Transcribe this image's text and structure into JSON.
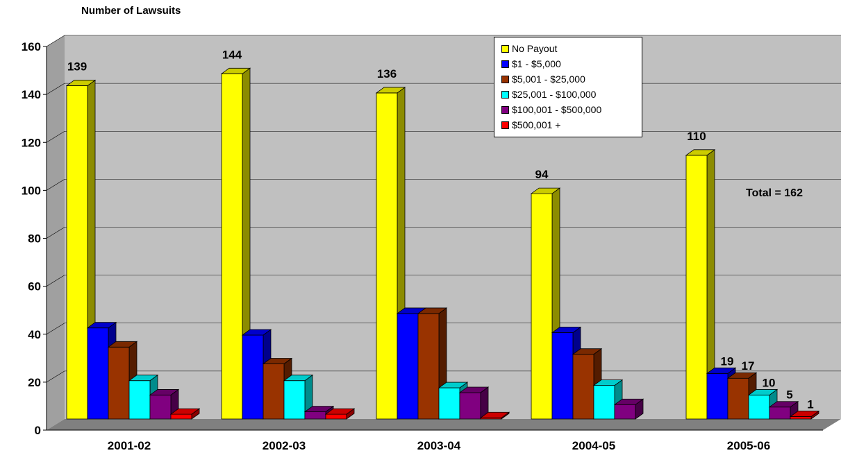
{
  "chart_data": {
    "type": "bar",
    "title": "Number of Lawsuits",
    "categories": [
      "2001-02",
      "2002-03",
      "2003-04",
      "2004-05",
      "2005-06"
    ],
    "ylim": [
      0,
      160
    ],
    "yticks": [
      0,
      20,
      40,
      60,
      80,
      100,
      120,
      140,
      160
    ],
    "grid": true,
    "legend_position": "top-right",
    "series": [
      {
        "name": "No Payout",
        "color": "#ffff00",
        "values": [
          139,
          144,
          136,
          94,
          110
        ]
      },
      {
        "name": "$1 - $5,000",
        "color": "#0000ff",
        "values": [
          38,
          35,
          44,
          36,
          19
        ]
      },
      {
        "name": "$5,001 - $25,000",
        "color": "#993300",
        "values": [
          30,
          23,
          44,
          27,
          17
        ]
      },
      {
        "name": "$25,001 - $100,000",
        "color": "#00ffff",
        "values": [
          16,
          16,
          13,
          14,
          10
        ]
      },
      {
        "name": "$100,001 - $500,000",
        "color": "#800080",
        "values": [
          10,
          3,
          11,
          6,
          5
        ]
      },
      {
        "name": "$500,001 +",
        "color": "#ff0000",
        "values": [
          2,
          2,
          0.5,
          0,
          1
        ]
      }
    ],
    "data_labels": [
      {
        "category": "2001-02",
        "series": "No Payout",
        "text": "139"
      },
      {
        "category": "2002-03",
        "series": "No Payout",
        "text": "144"
      },
      {
        "category": "2003-04",
        "series": "No Payout",
        "text": "136"
      },
      {
        "category": "2004-05",
        "series": "No Payout",
        "text": "94"
      },
      {
        "category": "2005-06",
        "series": "No Payout",
        "text": "110"
      },
      {
        "category": "2005-06",
        "series": "$1 - $5,000",
        "text": "19"
      },
      {
        "category": "2005-06",
        "series": "$5,001 - $25,000",
        "text": "17"
      },
      {
        "category": "2005-06",
        "series": "$25,001 - $100,000",
        "text": "10"
      },
      {
        "category": "2005-06",
        "series": "$100,001 - $500,000",
        "text": "5"
      },
      {
        "category": "2005-06",
        "series": "$500,001 +",
        "text": "1"
      }
    ],
    "annotation": "Total = 162"
  }
}
